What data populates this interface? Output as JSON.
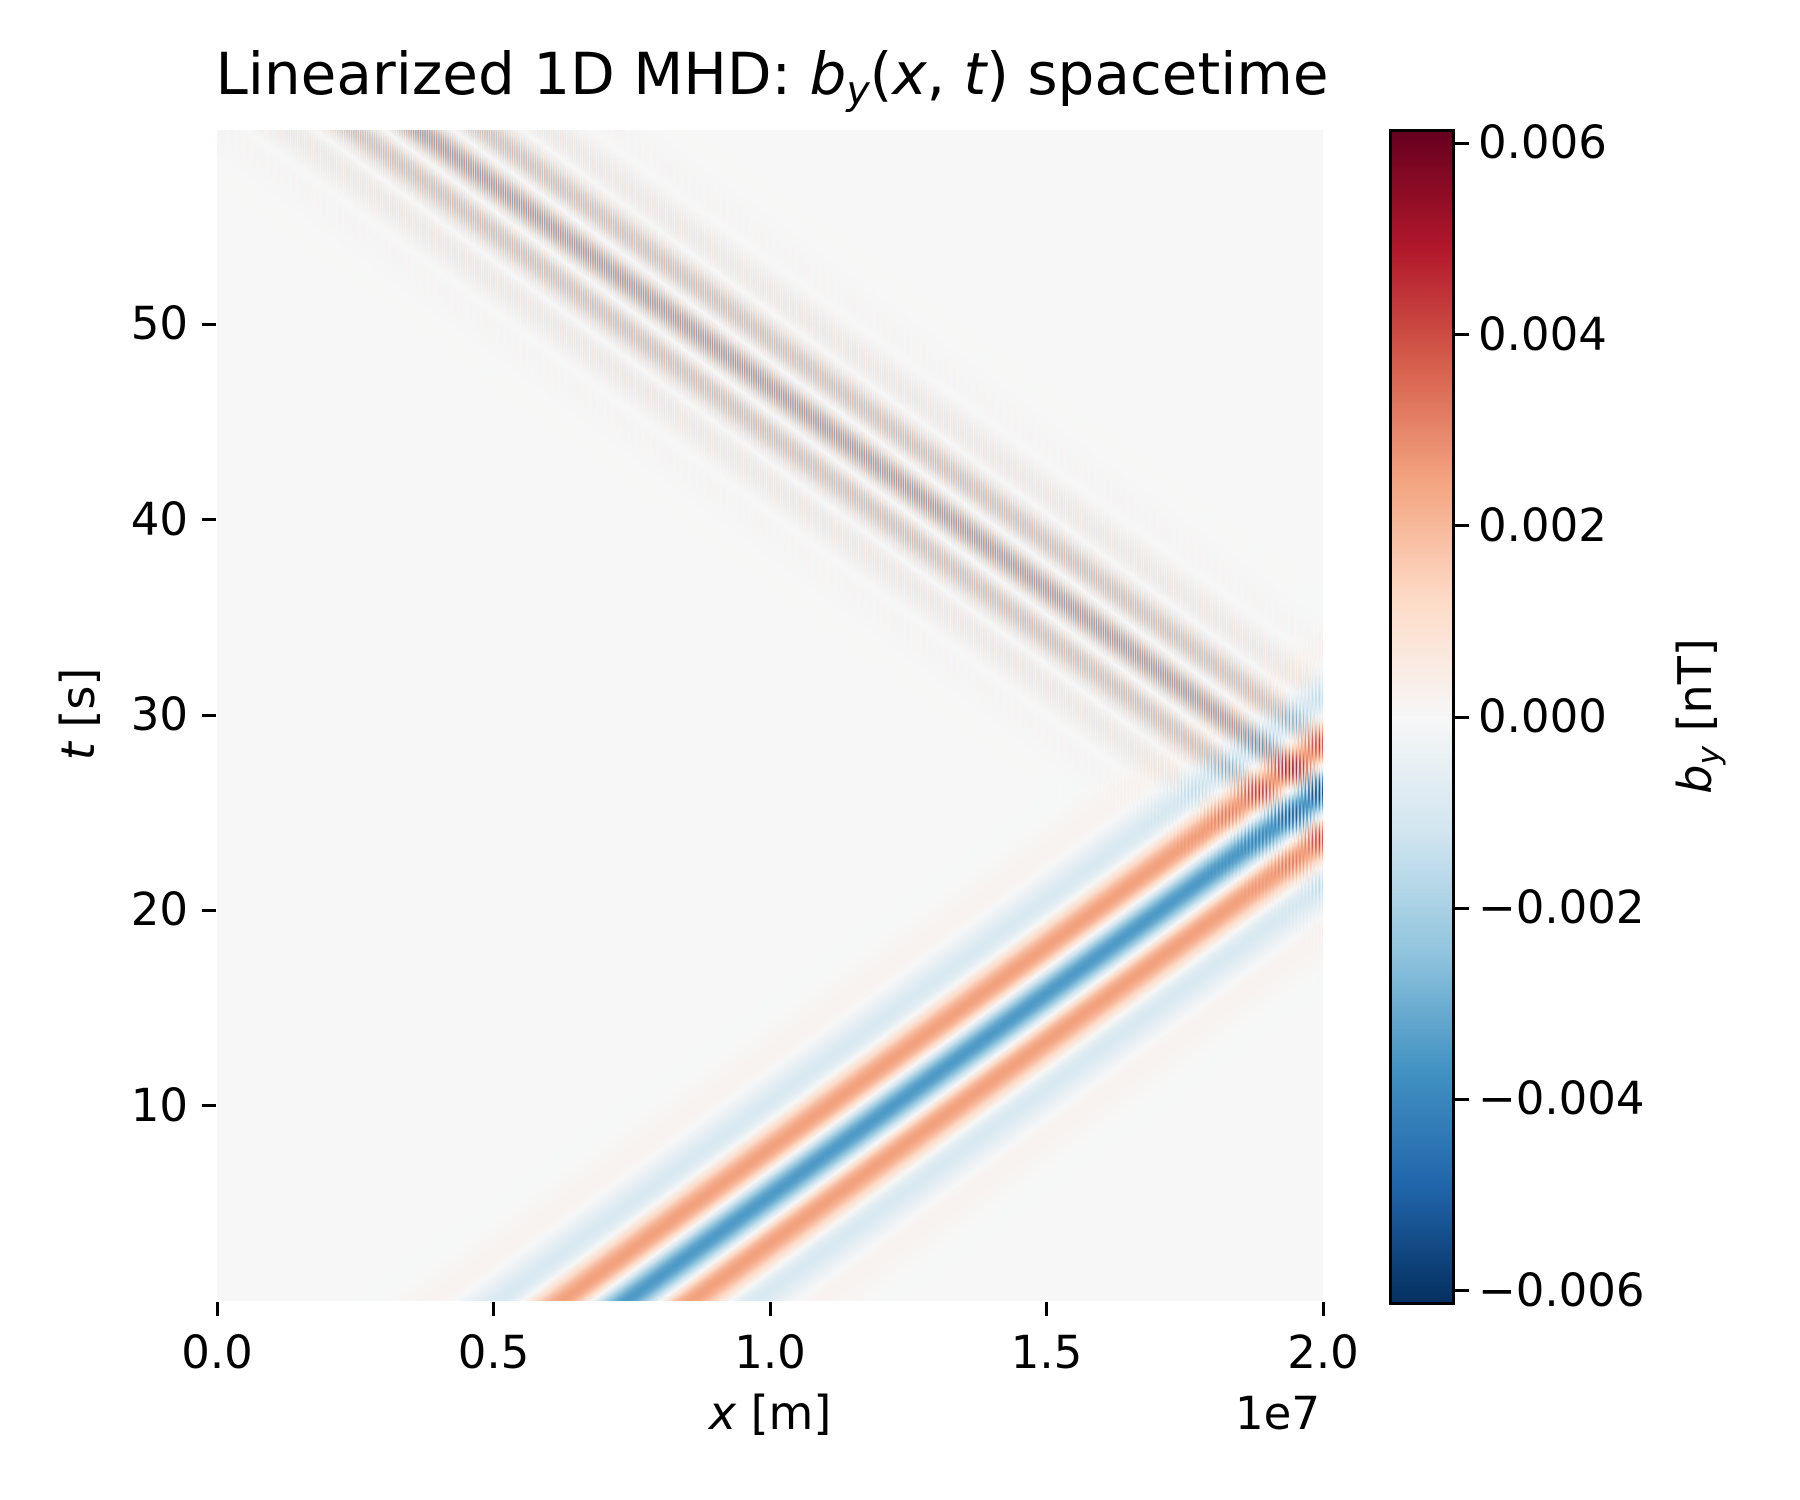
{
  "title": {
    "segments": [
      {
        "t": "Linearized 1D MHD: "
      },
      {
        "t": "b",
        "i": true
      },
      {
        "t": "y",
        "i": true,
        "sub": true
      },
      {
        "t": "("
      },
      {
        "t": "x",
        "i": true
      },
      {
        "t": ", "
      },
      {
        "t": "t",
        "i": true
      },
      {
        "t": ") spacetime"
      }
    ]
  },
  "x_axis": {
    "label_segments": [
      {
        "t": "x",
        "i": true
      },
      {
        "t": " [m]"
      }
    ],
    "range": [
      0,
      20000000
    ],
    "ticks": [
      {
        "v": 0,
        "label": "0.0"
      },
      {
        "v": 5000000,
        "label": "0.5"
      },
      {
        "v": 10000000,
        "label": "1.0"
      },
      {
        "v": 15000000,
        "label": "1.5"
      },
      {
        "v": 20000000,
        "label": "2.0"
      }
    ],
    "offset_text": "1e7"
  },
  "y_axis": {
    "label_segments": [
      {
        "t": "t",
        "i": true
      },
      {
        "t": " [s]"
      }
    ],
    "range": [
      0,
      59.95
    ],
    "ticks": [
      {
        "v": 10,
        "label": "10"
      },
      {
        "v": 20,
        "label": "20"
      },
      {
        "v": 30,
        "label": "30"
      },
      {
        "v": 40,
        "label": "40"
      },
      {
        "v": 50,
        "label": "50"
      }
    ]
  },
  "colorbar": {
    "label_segments": [
      {
        "t": "b",
        "i": true
      },
      {
        "t": "y",
        "i": true,
        "sub": true
      },
      {
        "t": " [nT]"
      }
    ],
    "vmin": -0.00612,
    "vmax": 0.00612,
    "outline_color": "#000000",
    "ticks": [
      {
        "v": 0.006,
        "label": "0.006"
      },
      {
        "v": 0.004,
        "label": "0.004"
      },
      {
        "v": 0.002,
        "label": "0.002"
      },
      {
        "v": 0.0,
        "label": "0.000"
      },
      {
        "v": -0.002,
        "label": "−0.002"
      },
      {
        "v": -0.004,
        "label": "−0.004"
      },
      {
        "v": -0.006,
        "label": "−0.006"
      }
    ]
  },
  "chart_data": {
    "type": "heatmap",
    "title": "Linearized 1D MHD: b_y(x, t) spacetime",
    "xlabel": "x [m]",
    "ylabel": "t [s]",
    "colorbar_label": "b_y [nT]",
    "x_range_m": [
      0,
      20000000
    ],
    "x_offset_factor": "1e7",
    "t_range_s": [
      0,
      59.95
    ],
    "value_range_nT": [
      -0.00612,
      0.00612
    ],
    "colormap": "RdBu_r",
    "colormap_anchors_low_to_high": [
      "#053061",
      "#2166ac",
      "#4393c3",
      "#92c5de",
      "#d1e5f0",
      "#f7f7f7",
      "#fddbc7",
      "#f4a582",
      "#d6604d",
      "#b2182b",
      "#67001f"
    ],
    "background_value_color": "#f7f7f7",
    "grid": false,
    "legend": false,
    "field_model": {
      "description": "Gaussian-enveloped transverse wave packet (negative/blue core flanked by positive/red lobes) travels in +x at constant speed, reflects off the x = L wall at t ≈ 26 s, and returns as a left-travelling packet whose very short-wavelength carrier visually averages to grey/mauve diagonal bands; incoming and reflected waves interfere at the wall producing saturated spots that reach the ±0.006 nT colour limits.",
      "L_m": 20000000,
      "wave_speed_m_per_s": 483000,
      "packet_center_at_t0_m": 7400000,
      "carrier_wavelength_m": 2500000,
      "envelope_sigma_m": 1500000,
      "amplitude_nT": 0.0035,
      "reflected_fine_carrier_wavelength_m": 64000,
      "reflection_time_s": 26.1
    }
  }
}
